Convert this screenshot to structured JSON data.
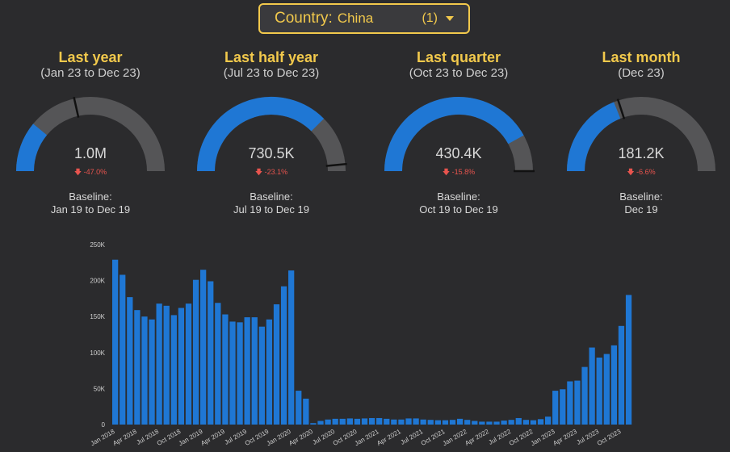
{
  "filter": {
    "label": "Country",
    "value": "China",
    "count": "(1)"
  },
  "kpis": [
    {
      "title": "Last year",
      "range": "(Jan 23 to Dec 23)",
      "value": "1.0M",
      "delta": "-47.0%",
      "fill_fraction": 0.22,
      "baseline_fraction": 0.43,
      "baseline_label": "Baseline:",
      "baseline_range": "Jan 19 to Dec 19"
    },
    {
      "title": "Last half year",
      "range": "(Jul 23 to Dec 23)",
      "value": "730.5K",
      "delta": "-23.1%",
      "fill_fraction": 0.75,
      "baseline_fraction": 0.97,
      "baseline_label": "Baseline:",
      "baseline_range": "Jul 19 to Dec 19"
    },
    {
      "title": "Last quarter",
      "range": "(Oct 23 to Dec 23)",
      "value": "430.4K",
      "delta": "-15.8%",
      "fill_fraction": 0.84,
      "baseline_fraction": 1.0,
      "baseline_label": "Baseline:",
      "baseline_range": "Oct 19 to Dec 19"
    },
    {
      "title": "Last month",
      "range": "(Dec 23)",
      "value": "181.2K",
      "delta": "-6.6%",
      "fill_fraction": 0.38,
      "baseline_fraction": 0.4,
      "baseline_label": "Baseline:",
      "baseline_range": "Dec 19"
    }
  ],
  "colors": {
    "accent": "#f2c94c",
    "bar": "#1f77d4",
    "gauge_track": "#555557",
    "negative": "#e8544e"
  },
  "chart_data": {
    "type": "bar",
    "ylim": [
      0,
      250000
    ],
    "y_ticks": [
      0,
      50000,
      100000,
      150000,
      200000,
      250000
    ],
    "y_tick_labels": [
      "0",
      "50K",
      "100K",
      "150K",
      "200K",
      "250K"
    ],
    "grid": false,
    "x_tick_labels": [
      "Jan 2018",
      "Apr 2018",
      "Jul 2018",
      "Oct 2018",
      "Jan 2019",
      "Apr 2019",
      "Jul 2019",
      "Oct 2019",
      "Jan 2020",
      "Apr 2020",
      "Jul 2020",
      "Oct 2020",
      "Jan 2021",
      "Apr 2021",
      "Jul 2021",
      "Oct 2021",
      "Jan 2022",
      "Apr 2022",
      "Jul 2022",
      "Oct 2022",
      "Jan 2023",
      "Apr 2023",
      "Jul 2023",
      "Oct 2023"
    ],
    "values": [
      229000,
      208000,
      177000,
      159000,
      150000,
      146000,
      168000,
      165000,
      152000,
      162000,
      168000,
      201000,
      215000,
      199000,
      169000,
      153000,
      143000,
      142000,
      149000,
      149000,
      136000,
      146000,
      167000,
      192000,
      214000,
      47000,
      36000,
      2000,
      5000,
      7000,
      8000,
      8000,
      8500,
      8000,
      8500,
      9000,
      9000,
      8000,
      7000,
      7000,
      8500,
      8500,
      7000,
      6500,
      6000,
      6000,
      6500,
      8000,
      6500,
      5000,
      4000,
      4000,
      4000,
      5500,
      6500,
      9000,
      6500,
      6000,
      7500,
      11000,
      47000,
      49000,
      60000,
      61000,
      80000,
      107000,
      93000,
      98000,
      110000,
      137000,
      180000
    ]
  }
}
